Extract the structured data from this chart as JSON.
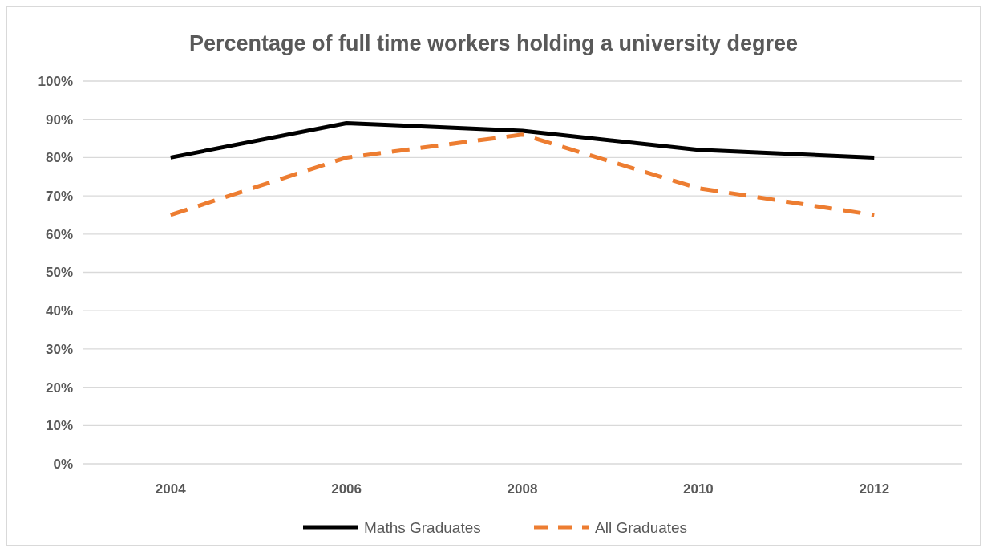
{
  "chart_data": {
    "type": "line",
    "title": "Percentage of full time workers holding a university degree",
    "categories": [
      "2004",
      "2006",
      "2008",
      "2010",
      "2012"
    ],
    "series": [
      {
        "name": "Maths Graduates",
        "color": "#000000",
        "values": [
          80,
          89,
          87,
          82,
          80
        ],
        "line_style": "solid"
      },
      {
        "name": "All Graduates",
        "color": "#ed7d31",
        "values": [
          65,
          80,
          86,
          72,
          65
        ],
        "line_style": "dashed"
      }
    ],
    "ylim": [
      0,
      100
    ],
    "yticks": [
      {
        "value": 0,
        "label": "0%"
      },
      {
        "value": 10,
        "label": "10%"
      },
      {
        "value": 20,
        "label": "20%"
      },
      {
        "value": 30,
        "label": "30%"
      },
      {
        "value": 40,
        "label": "40%"
      },
      {
        "value": 50,
        "label": "50%"
      },
      {
        "value": 60,
        "label": "60%"
      },
      {
        "value": 70,
        "label": "70%"
      },
      {
        "value": 80,
        "label": "80%"
      },
      {
        "value": 90,
        "label": "90%"
      },
      {
        "value": 100,
        "label": "100%"
      }
    ],
    "grid": "y",
    "legend": "bottom",
    "marker": "none"
  }
}
